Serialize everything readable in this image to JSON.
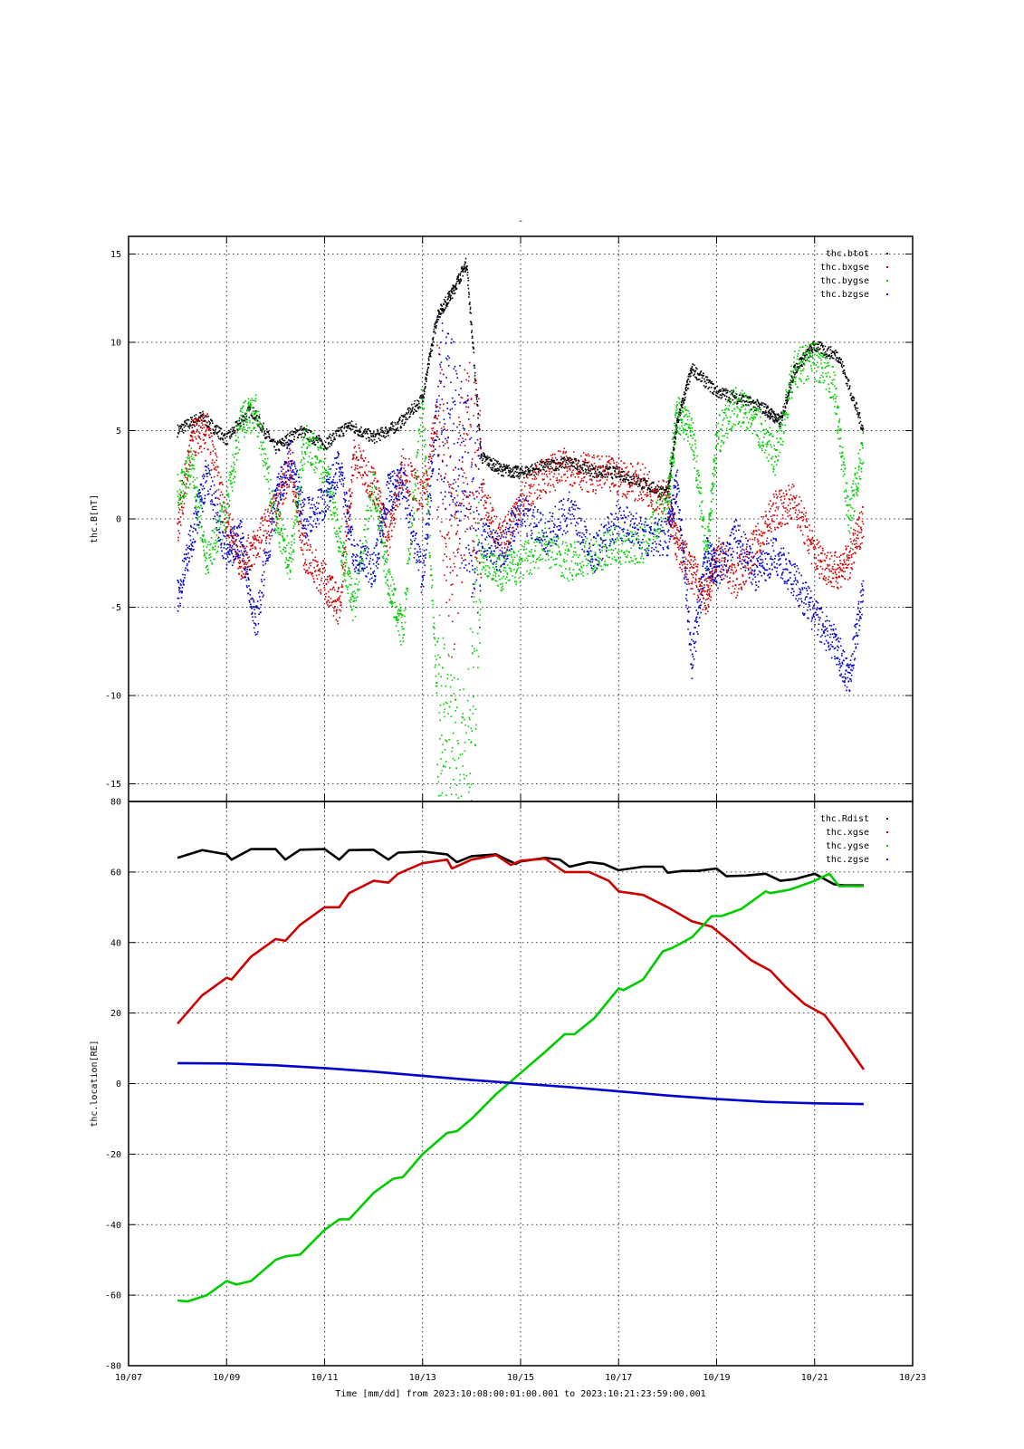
{
  "figure": {
    "title_mark": "-",
    "xaxis_caption": "Time [mm/dd]  from 2023:10:08:00:01:00.001  to  2023:10:21:23:59:00.001"
  },
  "chart_data": [
    {
      "type": "scatter",
      "ylabel": "thc.B[nT]",
      "ylim": [
        -16,
        16
      ],
      "yticks": [
        -15,
        -10,
        -5,
        0,
        5,
        10,
        15
      ],
      "xlim": [
        0,
        16
      ],
      "xtick_labels": [
        "10/07",
        "10/09",
        "10/11",
        "10/13",
        "10/15",
        "10/17",
        "10/19",
        "10/21",
        "10/23"
      ],
      "xtick_values": [
        0,
        2,
        4,
        6,
        8,
        10,
        12,
        14,
        16
      ],
      "grid": true,
      "legend_position": "top-right",
      "series": [
        {
          "name": "thc.btot",
          "color": "#000000",
          "x": [
            1.0,
            1.5,
            2.0,
            2.5,
            3.0,
            3.5,
            4.0,
            4.5,
            5.0,
            5.5,
            6.0,
            6.3,
            6.6,
            6.9,
            7.2,
            7.6,
            8.0,
            8.5,
            9.0,
            9.5,
            10.0,
            10.5,
            11.0,
            11.2,
            11.5,
            12.0,
            12.5,
            13.0,
            13.3,
            13.6,
            14.0,
            14.5,
            15.0
          ],
          "y": [
            5.0,
            5.8,
            4.5,
            6.2,
            4.0,
            5.0,
            4.2,
            5.3,
            4.6,
            5.3,
            6.8,
            11.5,
            12.8,
            14.5,
            3.5,
            2.8,
            2.6,
            3.0,
            3.2,
            2.7,
            2.6,
            2.0,
            1.4,
            5.5,
            8.5,
            7.2,
            6.8,
            6.2,
            5.5,
            8.5,
            9.8,
            9.2,
            5.0
          ]
        },
        {
          "name": "thc.bxgse",
          "color": "#cc0000",
          "x": [
            1.0,
            1.3,
            1.6,
            2.0,
            2.3,
            2.6,
            3.0,
            3.3,
            3.6,
            4.0,
            4.3,
            4.6,
            5.0,
            5.3,
            5.6,
            6.0,
            6.3,
            6.6,
            6.9,
            7.2,
            7.6,
            8.0,
            8.5,
            9.0,
            9.5,
            10.0,
            10.5,
            11.0,
            11.2,
            11.5,
            11.8,
            12.0,
            12.4,
            12.8,
            13.2,
            13.6,
            14.0,
            14.4,
            14.7,
            15.0
          ],
          "y": [
            -0.5,
            4.5,
            5.0,
            0.0,
            -2.5,
            -1.5,
            0.5,
            3.0,
            -2.0,
            -3.5,
            -5.0,
            3.5,
            2.0,
            -1.0,
            3.0,
            1.0,
            6.0,
            -3.0,
            4.0,
            1.5,
            -1.5,
            1.0,
            2.5,
            3.0,
            2.5,
            2.4,
            2.0,
            1.0,
            -1.5,
            -3.0,
            -4.5,
            -2.0,
            -3.5,
            -1.5,
            0.5,
            1.0,
            -2.0,
            -3.0,
            -2.5,
            0.0
          ]
        },
        {
          "name": "thc.bygse",
          "color": "#00cc00",
          "x": [
            1.0,
            1.3,
            1.6,
            2.0,
            2.3,
            2.6,
            3.0,
            3.3,
            3.6,
            4.0,
            4.3,
            4.6,
            5.0,
            5.3,
            5.6,
            6.0,
            6.3,
            6.6,
            6.9,
            7.2,
            7.6,
            8.0,
            8.5,
            9.0,
            9.5,
            10.0,
            10.5,
            11.0,
            11.2,
            11.5,
            11.8,
            12.0,
            12.4,
            12.8,
            13.2,
            13.6,
            14.0,
            14.4,
            14.7,
            15.0
          ],
          "y": [
            1.5,
            3.0,
            -2.5,
            0.5,
            5.5,
            6.0,
            0.0,
            -2.5,
            4.5,
            3.0,
            -1.0,
            -5.0,
            2.0,
            -3.5,
            -6.5,
            7.0,
            -10.0,
            -14.0,
            -15.0,
            -2.0,
            -3.0,
            -2.5,
            -1.5,
            -2.5,
            -2.0,
            -1.5,
            -1.5,
            1.0,
            6.0,
            5.0,
            -2.0,
            4.5,
            6.5,
            5.5,
            3.5,
            8.5,
            9.0,
            7.5,
            0.0,
            4.0
          ]
        },
        {
          "name": "thc.bzgse",
          "color": "#0000cc",
          "x": [
            1.0,
            1.3,
            1.6,
            2.0,
            2.3,
            2.6,
            3.0,
            3.3,
            3.6,
            4.0,
            4.3,
            4.6,
            5.0,
            5.3,
            5.6,
            6.0,
            6.3,
            6.6,
            6.9,
            7.2,
            7.6,
            8.0,
            8.5,
            9.0,
            9.5,
            10.0,
            10.5,
            11.0,
            11.2,
            11.5,
            11.8,
            12.0,
            12.4,
            12.8,
            13.2,
            13.6,
            14.0,
            14.4,
            14.7,
            15.0
          ],
          "y": [
            -4.5,
            -1.0,
            2.5,
            -2.0,
            -1.0,
            -6.0,
            1.0,
            3.5,
            0.0,
            1.0,
            3.0,
            -2.0,
            -3.0,
            1.5,
            2.0,
            -3.5,
            6.0,
            5.0,
            2.0,
            -1.0,
            -2.0,
            0.5,
            -1.0,
            0.5,
            -2.0,
            0.0,
            -1.0,
            -1.0,
            2.0,
            -8.0,
            -2.0,
            -3.0,
            -1.0,
            -3.0,
            -2.0,
            -3.5,
            -5.5,
            -7.0,
            -9.0,
            -4.0
          ]
        }
      ]
    },
    {
      "type": "line",
      "ylabel": "thc.location[RE]",
      "ylim": [
        -80,
        80
      ],
      "yticks": [
        -80,
        -60,
        -40,
        -20,
        0,
        20,
        40,
        60,
        80
      ],
      "xlim": [
        0,
        16
      ],
      "xtick_labels": [
        "10/07",
        "10/09",
        "10/11",
        "10/13",
        "10/15",
        "10/17",
        "10/19",
        "10/21",
        "10/23"
      ],
      "xtick_values": [
        0,
        2,
        4,
        6,
        8,
        10,
        12,
        14,
        16
      ],
      "grid": true,
      "legend_position": "top-right",
      "series": [
        {
          "name": "thc.Rdist",
          "color": "#000000",
          "x": [
            1.0,
            1.5,
            2.0,
            2.1,
            2.5,
            3.0,
            3.2,
            3.5,
            4.0,
            4.3,
            4.5,
            5.0,
            5.3,
            5.5,
            6.0,
            6.5,
            6.7,
            7.0,
            7.5,
            7.9,
            8.0,
            8.5,
            8.8,
            9.0,
            9.4,
            9.7,
            10.0,
            10.5,
            10.9,
            11.0,
            11.3,
            11.6,
            12.0,
            12.2,
            12.6,
            13.0,
            13.3,
            13.6,
            14.0,
            14.4,
            14.6,
            15.0
          ],
          "y": [
            64,
            66.2,
            65,
            63.5,
            66.5,
            66.5,
            63.5,
            66.3,
            66.5,
            63.5,
            66.2,
            66.3,
            63.5,
            65.5,
            65.8,
            65,
            62.8,
            64.5,
            65,
            62.3,
            63,
            64,
            63.5,
            61.5,
            62.8,
            62.3,
            60.5,
            61.5,
            61.5,
            59.8,
            60.3,
            60.3,
            61,
            58.8,
            59,
            59.5,
            57.5,
            58,
            59.5,
            56.5,
            56.2,
            56.2
          ]
        },
        {
          "name": "thc.xgse",
          "color": "#cc0000",
          "x": [
            1.0,
            1.5,
            2.0,
            2.1,
            2.5,
            3.0,
            3.2,
            3.5,
            4.0,
            4.3,
            4.5,
            5.0,
            5.3,
            5.5,
            6.0,
            6.5,
            6.6,
            7.0,
            7.5,
            7.8,
            8.0,
            8.5,
            8.9,
            9.0,
            9.4,
            9.8,
            10.0,
            10.5,
            11.0,
            11.5,
            11.9,
            12.3,
            12.7,
            13.1,
            13.4,
            13.8,
            14.2,
            14.5,
            15.0
          ],
          "y": [
            17,
            25,
            30,
            29.5,
            36,
            41,
            40.5,
            45,
            50,
            50,
            54,
            57.5,
            57,
            59.5,
            62.5,
            63.5,
            61,
            63.5,
            64.8,
            62,
            63.2,
            63.8,
            60,
            60,
            60,
            57.5,
            54.5,
            53.5,
            50,
            46,
            44.5,
            40,
            35,
            32,
            27.5,
            22.5,
            19.5,
            14,
            4
          ]
        },
        {
          "name": "thc.ygse",
          "color": "#00cc00",
          "x": [
            1.0,
            1.2,
            1.6,
            2.0,
            2.2,
            2.5,
            3.0,
            3.2,
            3.5,
            4.0,
            4.3,
            4.5,
            5.0,
            5.4,
            5.6,
            6.0,
            6.5,
            6.7,
            7.0,
            7.5,
            8.0,
            8.5,
            8.9,
            9.1,
            9.5,
            10.0,
            10.1,
            10.5,
            10.9,
            11.1,
            11.5,
            11.9,
            12.1,
            12.5,
            13.0,
            13.1,
            13.5,
            14.0,
            14.3,
            14.5,
            15.0
          ],
          "y": [
            -61.5,
            -61.8,
            -60,
            -56,
            -57,
            -56,
            -50,
            -49,
            -48.5,
            -41.5,
            -38.5,
            -38.5,
            -31,
            -27,
            -26.5,
            -20,
            -14,
            -13.5,
            -10,
            -3,
            3,
            9,
            14,
            14,
            18.5,
            27,
            26.5,
            29.5,
            37.5,
            38.5,
            41.5,
            47.5,
            47.5,
            49.5,
            54.5,
            54,
            55,
            57.5,
            59.5,
            56,
            56
          ]
        },
        {
          "name": "thc.zgse",
          "color": "#0000cc",
          "x": [
            1.0,
            2.0,
            3.0,
            4.0,
            5.0,
            6.0,
            7.0,
            8.0,
            9.0,
            10.0,
            11.0,
            12.0,
            13.0,
            14.0,
            15.0
          ],
          "y": [
            5.8,
            5.7,
            5.2,
            4.4,
            3.4,
            2.2,
            1.0,
            0.0,
            -1.0,
            -2.2,
            -3.4,
            -4.4,
            -5.2,
            -5.6,
            -5.8
          ]
        }
      ]
    }
  ]
}
